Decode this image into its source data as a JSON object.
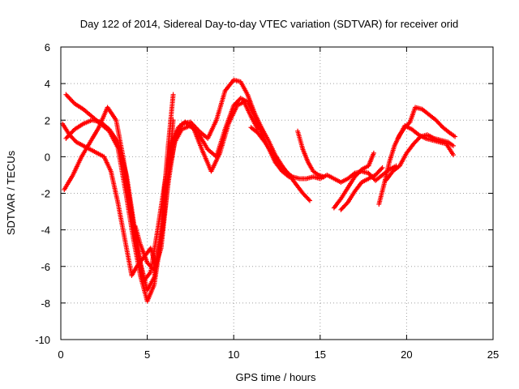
{
  "chart_data": {
    "type": "scatter",
    "title": "Day 122 of 2014, Sidereal Day-to-day VTEC variation (SDTVAR) for receiver orid",
    "xlabel": "GPS time / hours",
    "ylabel": "SDTVAR / TECUs",
    "xlim": [
      0,
      25
    ],
    "ylim": [
      -10,
      6
    ],
    "xticks": [
      "0",
      "5",
      "10",
      "15",
      "20",
      "25"
    ],
    "yticks": [
      "-10",
      "-8",
      "-6",
      "-4",
      "-2",
      "0",
      "2",
      "4",
      "6"
    ],
    "grid": true,
    "marker": "plus",
    "color": "#ff0000",
    "series": [
      {
        "name": "track-1",
        "x": [
          0.3,
          0.8,
          1.3,
          1.8,
          2.3,
          2.8,
          3.3,
          3.8,
          4.2,
          4.6,
          5.0,
          5.4,
          5.8,
          6.2,
          6.6,
          7.0,
          7.5,
          8.0,
          8.5,
          9.0,
          9.5,
          10.0,
          10.4,
          10.8,
          11.2,
          11.6,
          12.0,
          12.4,
          12.8,
          13.2,
          13.6,
          14.0,
          14.4
        ],
        "y": [
          3.4,
          2.9,
          2.6,
          2.2,
          1.8,
          1.4,
          0.5,
          -2.2,
          -4.5,
          -6.5,
          -7.9,
          -7.0,
          -4.5,
          -1.5,
          1.0,
          1.8,
          1.9,
          1.4,
          1.0,
          2.0,
          3.6,
          4.2,
          4.1,
          3.4,
          2.4,
          1.6,
          0.9,
          0.1,
          -0.5,
          -1.0,
          -1.5,
          -2.0,
          -2.4
        ]
      },
      {
        "name": "track-2",
        "x": [
          0.3,
          0.8,
          1.3,
          1.8,
          2.3,
          2.8,
          3.3,
          3.8,
          4.2,
          4.6,
          5.0,
          5.4,
          5.8,
          6.2,
          6.6,
          7.0,
          7.5,
          8.0,
          8.5,
          9.0,
          9.5,
          10.0,
          10.4,
          10.8,
          11.2,
          11.6,
          12.0,
          12.4,
          12.8,
          13.2
        ],
        "y": [
          1.0,
          1.5,
          1.8,
          2.0,
          1.9,
          1.5,
          0.8,
          -1.0,
          -3.5,
          -5.8,
          -7.3,
          -6.6,
          -4.0,
          -1.0,
          0.8,
          1.5,
          1.7,
          1.2,
          0.4,
          0.0,
          1.5,
          2.8,
          3.2,
          3.0,
          2.2,
          1.3,
          0.5,
          -0.3,
          -0.8,
          -1.1
        ]
      },
      {
        "name": "track-3",
        "x": [
          0.2,
          0.7,
          1.2,
          1.7,
          2.2,
          2.7,
          3.2,
          3.6,
          4.0,
          4.4,
          4.8,
          5.2,
          5.6,
          6.0,
          6.4,
          6.8,
          7.2,
          7.7,
          8.2,
          8.7,
          9.2,
          9.7,
          10.2,
          10.6,
          11.0,
          11.4
        ],
        "y": [
          -1.8,
          -1.0,
          0.0,
          0.8,
          1.6,
          2.7,
          2.0,
          0.0,
          -2.5,
          -5.0,
          -6.8,
          -6.3,
          -4.0,
          -1.5,
          0.8,
          1.6,
          1.9,
          1.5,
          0.3,
          -0.8,
          0.2,
          1.8,
          2.8,
          3.0,
          2.2,
          1.5
        ]
      },
      {
        "name": "track-4",
        "x": [
          0.1,
          0.5,
          0.9,
          1.3,
          1.7,
          2.1,
          2.5,
          2.9,
          3.3,
          3.7,
          4.1,
          4.4,
          4.8,
          5.2,
          5.5,
          5.8,
          6.2,
          6.5
        ],
        "y": [
          1.8,
          1.2,
          0.8,
          0.6,
          0.4,
          0.2,
          0.0,
          -0.8,
          -2.5,
          -4.5,
          -6.5,
          -6.0,
          -5.5,
          -5.0,
          -6.0,
          -4.0,
          0.5,
          3.4
        ]
      },
      {
        "name": "track-5",
        "x": [
          4.3,
          4.6,
          5.0,
          5.4,
          5.8,
          6.2,
          6.5
        ],
        "y": [
          -3.8,
          -4.8,
          -5.8,
          -6.2,
          -5.0,
          -1.5,
          2.0
        ]
      },
      {
        "name": "track-6",
        "x": [
          11.0,
          11.4,
          11.8,
          12.2,
          12.6,
          13.0,
          13.4,
          13.8,
          14.2,
          14.6,
          15.0,
          15.4,
          15.8,
          16.2,
          16.6,
          17.0,
          17.4,
          17.8,
          18.2,
          18.6,
          19.0,
          19.4
        ],
        "y": [
          1.6,
          1.3,
          0.8,
          0.2,
          -0.4,
          -0.8,
          -1.1,
          -1.2,
          -1.2,
          -1.1,
          -1.2,
          -1.0,
          -1.2,
          -1.4,
          -1.2,
          -0.9,
          -0.8,
          -0.9,
          -1.3,
          -1.0,
          -0.7,
          -0.5
        ]
      },
      {
        "name": "track-7",
        "x": [
          13.7,
          14.0,
          14.3,
          14.6,
          14.9,
          15.2
        ],
        "y": [
          1.4,
          0.4,
          -0.3,
          -0.8,
          -1.0,
          -1.1
        ]
      },
      {
        "name": "track-8",
        "x": [
          15.8,
          16.2,
          16.6,
          17.0,
          17.4,
          17.8,
          18.1
        ],
        "y": [
          -2.8,
          -2.3,
          -1.7,
          -1.1,
          -0.7,
          -0.5,
          0.2
        ]
      },
      {
        "name": "track-9",
        "x": [
          16.2,
          16.6,
          17.0,
          17.4,
          17.8,
          18.2,
          18.6
        ],
        "y": [
          -2.9,
          -2.5,
          -1.9,
          -1.4,
          -1.2,
          -1.0,
          -0.6
        ]
      },
      {
        "name": "track-10",
        "x": [
          18.4,
          18.7,
          19.0,
          19.3,
          19.6,
          19.9,
          20.2,
          20.5,
          20.9,
          21.3,
          21.7,
          22.1,
          22.5,
          22.8
        ],
        "y": [
          -2.6,
          -1.5,
          -0.3,
          0.6,
          1.2,
          1.6,
          1.9,
          2.7,
          2.6,
          2.3,
          2.0,
          1.6,
          1.3,
          1.1
        ]
      },
      {
        "name": "track-11",
        "x": [
          18.8,
          19.2,
          19.6,
          20.0,
          20.4,
          20.8,
          21.2,
          21.6,
          22.0,
          22.4,
          22.7
        ],
        "y": [
          -1.3,
          -0.8,
          -0.5,
          0.2,
          0.7,
          1.1,
          1.2,
          1.0,
          0.9,
          0.8,
          0.6
        ]
      },
      {
        "name": "track-12",
        "x": [
          19.5,
          19.9,
          20.3,
          20.7,
          21.1,
          21.5,
          21.9,
          22.3,
          22.7
        ],
        "y": [
          1.0,
          1.7,
          1.5,
          1.2,
          1.0,
          0.9,
          0.8,
          0.7,
          0.1
        ]
      }
    ]
  }
}
